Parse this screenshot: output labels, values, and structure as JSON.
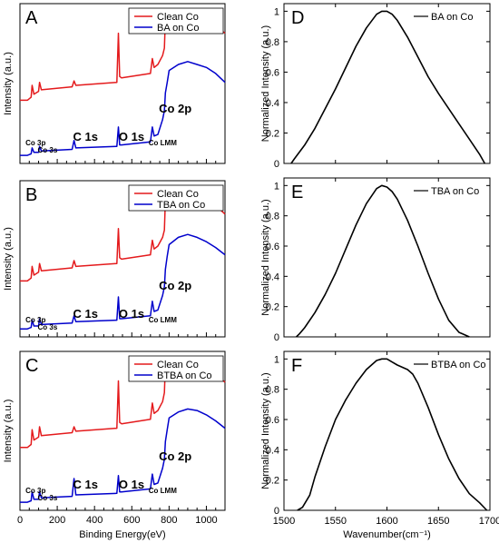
{
  "chart_data": [
    {
      "panel": "A",
      "type": "line",
      "xlabel": "",
      "ylabel": "Intensity (a.u.)",
      "xlim": [
        0,
        1100
      ],
      "xticks": [],
      "legend": "top-right",
      "series": [
        {
          "name": "Clean Co",
          "color": "#e41a1c",
          "offset": 0.55,
          "x": [
            0,
            40,
            60,
            65,
            75,
            100,
            105,
            115,
            280,
            290,
            300,
            520,
            528,
            535,
            545,
            700,
            710,
            720,
            740,
            765,
            775,
            780,
            790,
            800,
            850,
            900,
            950,
            1000,
            1050,
            1100
          ],
          "y": [
            0.4,
            0.4,
            0.42,
            0.5,
            0.44,
            0.46,
            0.52,
            0.47,
            0.49,
            0.53,
            0.5,
            0.52,
            0.85,
            0.56,
            0.55,
            0.58,
            0.68,
            0.62,
            0.64,
            0.7,
            0.75,
            0.95,
            0.97,
            0.93,
            0.98,
            0.97,
            0.97,
            0.95,
            0.9,
            0.85
          ]
        },
        {
          "name": "BA on Co",
          "color": "#0000cc",
          "offset": 0.0,
          "x": [
            0,
            40,
            60,
            65,
            75,
            100,
            105,
            115,
            280,
            290,
            300,
            520,
            528,
            535,
            545,
            700,
            710,
            720,
            740,
            765,
            775,
            780,
            790,
            800,
            850,
            900,
            950,
            1000,
            1050,
            1100
          ],
          "y": [
            0.03,
            0.03,
            0.04,
            0.08,
            0.05,
            0.05,
            0.09,
            0.06,
            0.07,
            0.13,
            0.08,
            0.09,
            0.22,
            0.1,
            0.1,
            0.12,
            0.22,
            0.16,
            0.17,
            0.27,
            0.33,
            0.45,
            0.52,
            0.6,
            0.64,
            0.66,
            0.64,
            0.62,
            0.58,
            0.52
          ]
        }
      ],
      "annotations": [
        {
          "text": "Co 3p",
          "x": 30,
          "size": "small"
        },
        {
          "text": "Co 3s",
          "x": 95,
          "size": "small"
        },
        {
          "text": "C 1s",
          "x": 285,
          "size": "big"
        },
        {
          "text": "O 1s",
          "x": 530,
          "size": "big"
        },
        {
          "text": "Co LMM",
          "x": 690,
          "size": "small"
        },
        {
          "text": "Co 2p",
          "x": 745,
          "size": "big"
        }
      ]
    },
    {
      "panel": "B",
      "type": "line",
      "xlabel": "",
      "ylabel": "Intensity (a.u.)",
      "xlim": [
        0,
        1100
      ],
      "xticks": [],
      "legend": "top-right",
      "series": [
        {
          "name": "Clean Co",
          "color": "#e41a1c",
          "offset": 0.55,
          "x": [
            0,
            40,
            60,
            65,
            75,
            100,
            105,
            115,
            280,
            290,
            300,
            520,
            528,
            535,
            545,
            700,
            710,
            720,
            740,
            765,
            775,
            780,
            790,
            800,
            850,
            900,
            950,
            1000,
            1050,
            1100
          ],
          "y": [
            0.36,
            0.36,
            0.38,
            0.46,
            0.4,
            0.42,
            0.48,
            0.43,
            0.45,
            0.5,
            0.46,
            0.48,
            0.72,
            0.52,
            0.51,
            0.54,
            0.64,
            0.58,
            0.6,
            0.66,
            0.71,
            0.92,
            0.94,
            0.9,
            0.94,
            0.93,
            0.93,
            0.91,
            0.88,
            0.82
          ]
        },
        {
          "name": "TBA on Co",
          "color": "#0000cc",
          "offset": 0.0,
          "x": [
            0,
            40,
            60,
            65,
            75,
            100,
            105,
            115,
            280,
            290,
            300,
            520,
            528,
            535,
            545,
            700,
            710,
            720,
            740,
            765,
            775,
            780,
            790,
            800,
            850,
            900,
            950,
            1000,
            1050,
            1100
          ],
          "y": [
            0.03,
            0.03,
            0.04,
            0.09,
            0.05,
            0.05,
            0.1,
            0.06,
            0.07,
            0.12,
            0.08,
            0.09,
            0.25,
            0.1,
            0.1,
            0.12,
            0.22,
            0.15,
            0.16,
            0.26,
            0.32,
            0.44,
            0.53,
            0.61,
            0.66,
            0.68,
            0.66,
            0.63,
            0.59,
            0.54
          ]
        }
      ],
      "annotations": [
        {
          "text": "Co 3p",
          "x": 30,
          "size": "small"
        },
        {
          "text": "Co 3s",
          "x": 95,
          "size": "small"
        },
        {
          "text": "C 1s",
          "x": 285,
          "size": "big"
        },
        {
          "text": "O 1s",
          "x": 530,
          "size": "big"
        },
        {
          "text": "Co LMM",
          "x": 690,
          "size": "small"
        },
        {
          "text": "Co 2p",
          "x": 745,
          "size": "big"
        }
      ]
    },
    {
      "panel": "C",
      "type": "line",
      "xlabel": "Binding Energy(eV)",
      "ylabel": "Intensity (a.u.)",
      "xlim": [
        0,
        1100
      ],
      "xticks": [
        0,
        200,
        400,
        600,
        800,
        1000
      ],
      "legend": "top-right",
      "series": [
        {
          "name": "Clean Co",
          "color": "#e41a1c",
          "offset": 0.55,
          "x": [
            0,
            40,
            60,
            65,
            75,
            100,
            105,
            115,
            280,
            290,
            300,
            520,
            528,
            535,
            545,
            700,
            710,
            720,
            740,
            765,
            775,
            780,
            790,
            800,
            850,
            900,
            950,
            1000,
            1050,
            1100
          ],
          "y": [
            0.4,
            0.4,
            0.42,
            0.52,
            0.45,
            0.47,
            0.54,
            0.48,
            0.5,
            0.54,
            0.51,
            0.53,
            0.85,
            0.57,
            0.56,
            0.59,
            0.7,
            0.63,
            0.65,
            0.71,
            0.77,
            0.96,
            0.98,
            0.94,
            0.98,
            0.97,
            0.97,
            0.95,
            0.9,
            0.84
          ]
        },
        {
          "name": "BTBA on Co",
          "color": "#0000cc",
          "offset": 0.0,
          "x": [
            0,
            40,
            60,
            65,
            75,
            100,
            105,
            115,
            280,
            290,
            300,
            520,
            528,
            535,
            545,
            700,
            710,
            720,
            740,
            765,
            775,
            780,
            790,
            800,
            850,
            900,
            950,
            1000,
            1050,
            1100
          ],
          "y": [
            0.03,
            0.03,
            0.04,
            0.1,
            0.05,
            0.05,
            0.1,
            0.06,
            0.07,
            0.19,
            0.08,
            0.09,
            0.21,
            0.1,
            0.1,
            0.12,
            0.22,
            0.15,
            0.16,
            0.26,
            0.32,
            0.44,
            0.52,
            0.6,
            0.64,
            0.66,
            0.65,
            0.62,
            0.58,
            0.53
          ]
        }
      ],
      "annotations": [
        {
          "text": "Co 3p",
          "x": 30,
          "size": "small"
        },
        {
          "text": "Co 3s",
          "x": 95,
          "size": "small"
        },
        {
          "text": "C 1s",
          "x": 285,
          "size": "big"
        },
        {
          "text": "O 1s",
          "x": 530,
          "size": "big"
        },
        {
          "text": "Co LMM",
          "x": 690,
          "size": "small"
        },
        {
          "text": "Co 2p",
          "x": 745,
          "size": "big"
        }
      ]
    },
    {
      "panel": "D",
      "type": "line",
      "xlabel": "",
      "ylabel": "Normalized Intensity (a.u.)",
      "xlim": [
        1500,
        1700
      ],
      "ylim": [
        0,
        1.05
      ],
      "xticks": [],
      "yticks": [
        0,
        0.2,
        0.4,
        0.6,
        0.8,
        1
      ],
      "legend": "top-right",
      "series": [
        {
          "name": "BA on Co",
          "color": "#000000",
          "x": [
            1507,
            1510,
            1520,
            1530,
            1540,
            1550,
            1560,
            1570,
            1580,
            1590,
            1595,
            1600,
            1605,
            1610,
            1620,
            1630,
            1640,
            1650,
            1660,
            1670,
            1680,
            1690,
            1695
          ],
          "y": [
            0.0,
            0.03,
            0.12,
            0.23,
            0.36,
            0.49,
            0.63,
            0.77,
            0.89,
            0.98,
            1.0,
            1.0,
            0.98,
            0.94,
            0.83,
            0.7,
            0.57,
            0.46,
            0.36,
            0.26,
            0.16,
            0.06,
            0.0
          ]
        }
      ]
    },
    {
      "panel": "E",
      "type": "line",
      "xlabel": "",
      "ylabel": "Normalized Intensity (a.u.)",
      "xlim": [
        1500,
        1700
      ],
      "ylim": [
        0,
        1.05
      ],
      "xticks": [],
      "yticks": [
        0,
        0.2,
        0.4,
        0.6,
        0.8,
        1
      ],
      "legend": "top-right",
      "series": [
        {
          "name": "TBA on Co",
          "color": "#000000",
          "x": [
            1512,
            1515,
            1520,
            1530,
            1540,
            1550,
            1560,
            1570,
            1580,
            1590,
            1595,
            1600,
            1605,
            1610,
            1620,
            1630,
            1640,
            1650,
            1660,
            1670,
            1680
          ],
          "y": [
            0.0,
            0.02,
            0.06,
            0.16,
            0.28,
            0.42,
            0.58,
            0.74,
            0.88,
            0.98,
            1.0,
            0.99,
            0.96,
            0.91,
            0.77,
            0.6,
            0.42,
            0.25,
            0.11,
            0.03,
            0.0
          ]
        }
      ]
    },
    {
      "panel": "F",
      "type": "line",
      "xlabel": "Wavenumber(cm⁻¹)",
      "ylabel": "Normalized Intensity (a.u.)",
      "xlim": [
        1500,
        1700
      ],
      "ylim": [
        0,
        1.05
      ],
      "xticks": [
        1500,
        1550,
        1600,
        1650,
        1700
      ],
      "yticks": [
        0,
        0.2,
        0.4,
        0.6,
        0.8,
        1
      ],
      "legend": "top-right",
      "series": [
        {
          "name": "BTBA on Co",
          "color": "#000000",
          "x": [
            1513,
            1518,
            1525,
            1530,
            1540,
            1550,
            1560,
            1570,
            1580,
            1590,
            1595,
            1600,
            1605,
            1610,
            1620,
            1625,
            1630,
            1640,
            1650,
            1660,
            1670,
            1680,
            1690,
            1697
          ],
          "y": [
            0.0,
            0.02,
            0.1,
            0.22,
            0.42,
            0.6,
            0.73,
            0.84,
            0.93,
            0.99,
            1.0,
            1.0,
            0.98,
            0.96,
            0.93,
            0.9,
            0.84,
            0.68,
            0.5,
            0.34,
            0.21,
            0.11,
            0.05,
            0.0
          ]
        }
      ]
    }
  ]
}
